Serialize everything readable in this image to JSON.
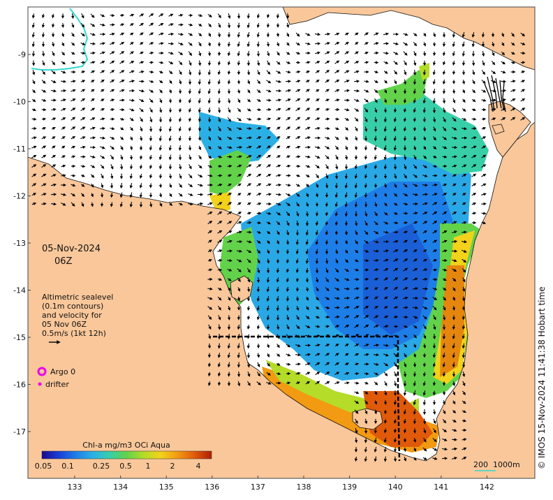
{
  "map": {
    "date_label": "05-Nov-2024",
    "time_label": "06Z",
    "legend_text": [
      "Altimetric sealevel",
      "(0.1m contours)",
      "and velocity for",
      "05 Nov 06Z",
      "0.5m/s (1kt 12h)"
    ],
    "argo_label": "Argo 0",
    "drifter_label": "drifter",
    "colorbar": {
      "title": "Chl-a mg/m3 OCi Aqua",
      "tick_labels": [
        "0.05",
        "0.1",
        "0.25",
        "0.5",
        "1",
        "2",
        "4"
      ],
      "colors": [
        "#1a0a8c",
        "#1a3fd6",
        "#1e7ee8",
        "#2bb0e6",
        "#38cfa8",
        "#62d24a",
        "#b4dc28",
        "#f2d21a",
        "#f29a12",
        "#e05a0a",
        "#b01e04"
      ]
    },
    "lon_ticks": [
      "133",
      "134",
      "135",
      "136",
      "137",
      "138",
      "139",
      "140",
      "141",
      "142"
    ],
    "lat_ticks": [
      "-9",
      "-10",
      "-11",
      "-12",
      "-13",
      "-14",
      "-15",
      "-16",
      "-17"
    ],
    "scale_bar": {
      "label_a": "200",
      "label_b": "1000m"
    },
    "credit": "© IMOS 15-Nov-2024 11:41:38 Hobart time",
    "colors": {
      "land": "#f9c79a",
      "sea": "#ffffff",
      "argo": "#ee00ee",
      "contour_cyan": "#30d8d0"
    }
  }
}
